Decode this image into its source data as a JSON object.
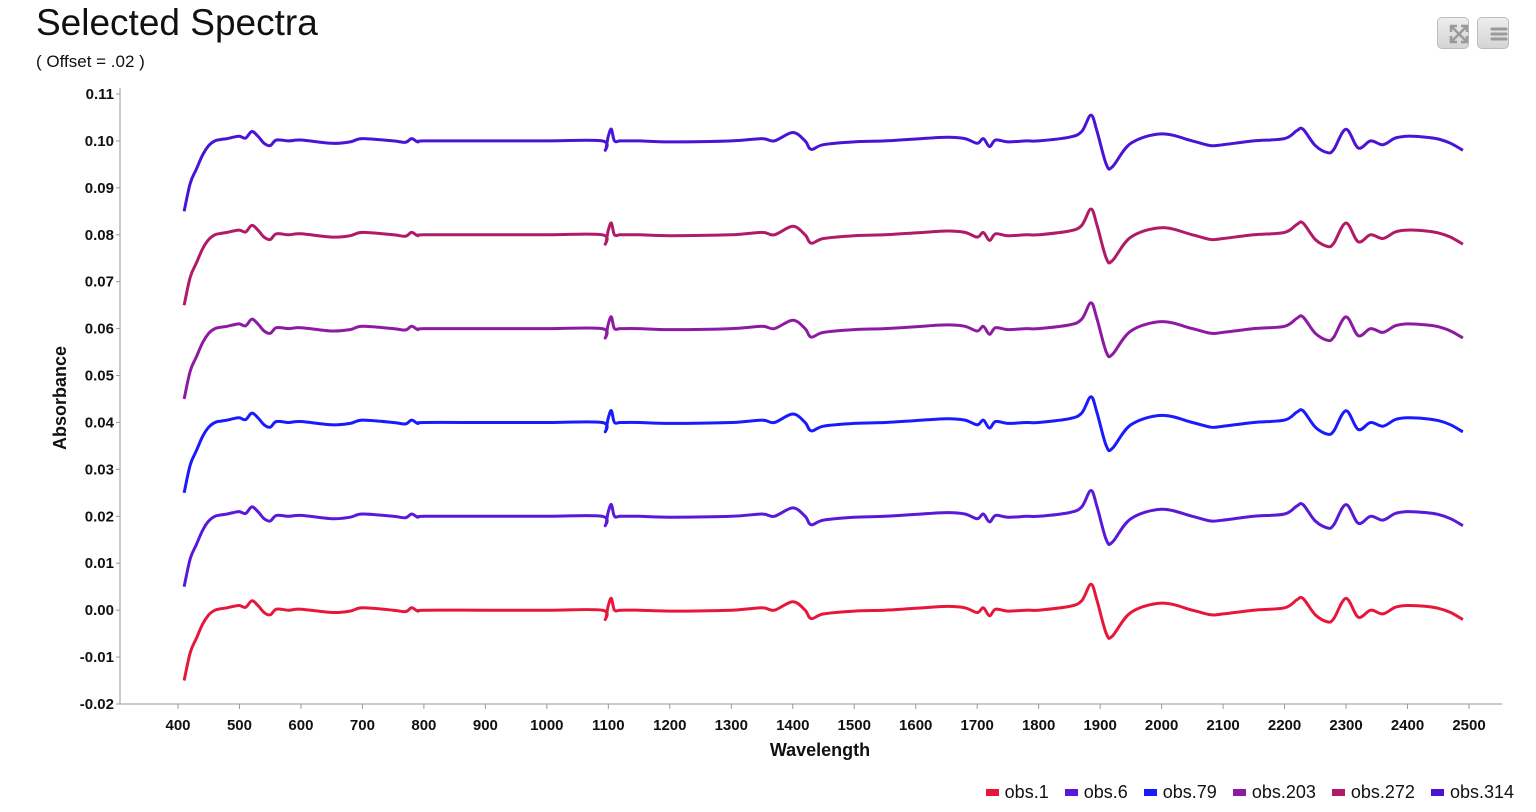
{
  "toolbar": {
    "expand_icon": "expand-arrows-icon",
    "menu_icon": "hamburger-menu-icon"
  },
  "chart_data": {
    "type": "line",
    "title": "Selected Spectra",
    "subtitle": "( Offset = .02 )",
    "xlabel": "Wavelength",
    "ylabel": "Absorbance",
    "xlim": [
      400,
      2500
    ],
    "ylim": [
      -0.02,
      0.11
    ],
    "x_ticks": [
      400,
      500,
      600,
      700,
      800,
      900,
      1000,
      1100,
      1200,
      1300,
      1400,
      1500,
      1600,
      1700,
      1800,
      1900,
      2000,
      2100,
      2200,
      2300,
      2400,
      2500
    ],
    "y_ticks": [
      -0.02,
      -0.01,
      0.0,
      0.01,
      0.02,
      0.03,
      0.04,
      0.05,
      0.06,
      0.07,
      0.08,
      0.09,
      0.1,
      0.11
    ],
    "y_tick_labels": [
      "-0.02",
      "-0.01",
      "0.00",
      "0.01",
      "0.02",
      "0.03",
      "0.04",
      "0.05",
      "0.06",
      "0.07",
      "0.08",
      "0.09",
      "0.10",
      "0.11"
    ],
    "x_tick_labels": [
      "400",
      "500",
      "600",
      "700",
      "800",
      "900",
      "1000",
      "1100",
      "1200",
      "1300",
      "1400",
      "1500",
      "1600",
      "1700",
      "1800",
      "1900",
      "2000",
      "2100",
      "2200",
      "2300",
      "2400",
      "2500"
    ],
    "grid": false,
    "legend_position": "bottom-right",
    "x": [
      410,
      420,
      430,
      440,
      450,
      460,
      470,
      480,
      490,
      500,
      510,
      520,
      530,
      540,
      550,
      560,
      580,
      600,
      650,
      680,
      700,
      750,
      770,
      780,
      790,
      800,
      900,
      1000,
      1090,
      1095,
      1100,
      1105,
      1110,
      1120,
      1150,
      1200,
      1300,
      1350,
      1370,
      1400,
      1420,
      1430,
      1450,
      1500,
      1550,
      1600,
      1650,
      1680,
      1700,
      1710,
      1720,
      1730,
      1750,
      1780,
      1800,
      1850,
      1870,
      1885,
      1895,
      1910,
      1920,
      1950,
      2000,
      2050,
      2080,
      2100,
      2150,
      2200,
      2220,
      2230,
      2250,
      2270,
      2280,
      2300,
      2320,
      2340,
      2360,
      2380,
      2400,
      2430,
      2450,
      2470,
      2490
    ],
    "base": [
      -0.015,
      -0.009,
      -0.006,
      -0.003,
      -0.001,
      0.0,
      0.0003,
      0.0005,
      0.0008,
      0.001,
      0.0006,
      0.002,
      0.001,
      -0.0005,
      -0.001,
      0.0002,
      0.0,
      0.0002,
      -0.0005,
      -0.0002,
      0.0005,
      0.0,
      -0.0003,
      0.0005,
      -0.0002,
      0.0,
      0.0,
      0.0,
      0.0,
      -0.002,
      0.001,
      0.0025,
      0.0,
      0.0,
      0.0,
      -0.0002,
      0.0,
      0.0005,
      0.0,
      0.0018,
      0.0,
      -0.0018,
      -0.0008,
      -0.0002,
      0.0,
      0.0004,
      0.0008,
      0.0005,
      -0.0005,
      0.0005,
      -0.0012,
      0.0002,
      -0.0002,
      0.0,
      0.0,
      0.0008,
      0.002,
      0.0055,
      0.002,
      -0.005,
      -0.0055,
      -0.0005,
      0.0015,
      0.0,
      -0.001,
      -0.0008,
      0.0,
      0.0005,
      0.0022,
      0.0025,
      -0.001,
      -0.0025,
      -0.0018,
      0.0025,
      -0.0015,
      0.0,
      -0.0008,
      0.0006,
      0.001,
      0.0008,
      0.0004,
      -0.0005,
      -0.002
    ],
    "series": [
      {
        "name": "obs.1",
        "offset": 0.0,
        "color": "#e8173a"
      },
      {
        "name": "obs.6",
        "offset": 0.02,
        "color": "#5a18d8"
      },
      {
        "name": "obs.79",
        "offset": 0.04,
        "color": "#1a1aff"
      },
      {
        "name": "obs.203",
        "offset": 0.06,
        "color": "#8e1aa2"
      },
      {
        "name": "obs.272",
        "offset": 0.08,
        "color": "#b01a66"
      },
      {
        "name": "obs.314",
        "offset": 0.1,
        "color": "#4a14d6"
      }
    ]
  }
}
